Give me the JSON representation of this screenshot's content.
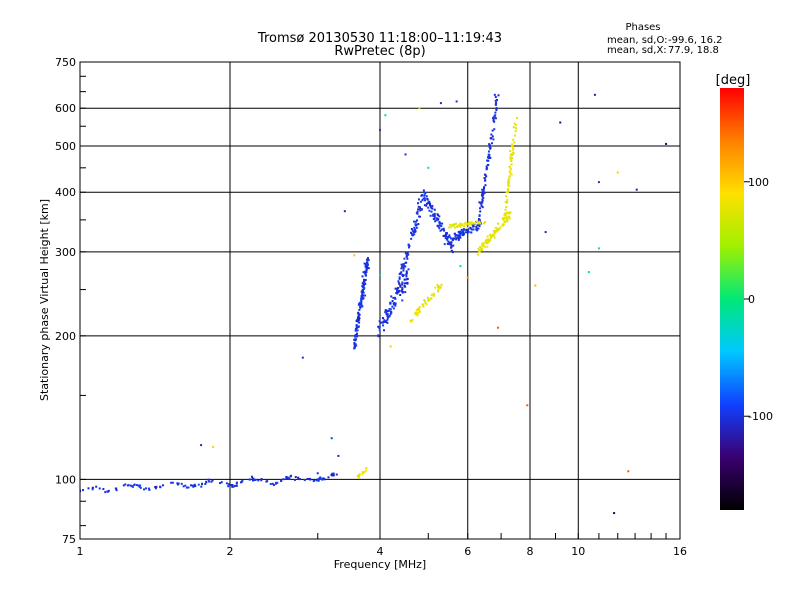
{
  "chart_data": {
    "type": "scatter",
    "title": "Tromsø 20130530 11:18:00–11:19:43",
    "subtitle": "RwPretec (8p)",
    "xlabel": "Frequency [MHz]",
    "ylabel": "Stationary phase Virtual Height [km]",
    "xscale": "log",
    "yscale": "log",
    "xlim": [
      1,
      16
    ],
    "ylim": [
      75,
      750
    ],
    "xticks": [
      1,
      2,
      4,
      6,
      8,
      10,
      16
    ],
    "yticks": [
      75,
      100,
      200,
      300,
      400,
      500,
      600,
      750
    ],
    "grid": true,
    "phase_stats": {
      "heading": "Phases",
      "o_label": "mean, sd,O:",
      "o_values": "-99.6, 16.2",
      "x_label": "mean, sd,X:",
      "x_values": "77.9, 18.8"
    },
    "colorbar": {
      "label": "[deg]",
      "range": [
        -180,
        180
      ],
      "ticks": [
        100,
        0,
        -100
      ],
      "colors": [
        "#000000",
        "#3a0070",
        "#1040ff",
        "#00c8ff",
        "#00e878",
        "#a0f000",
        "#ffe000",
        "#ff8000",
        "#ff0000"
      ]
    },
    "series": [
      {
        "mode": "O",
        "color_phase": -100,
        "segments": [
          {
            "x": [
              1.0,
              3.3
            ],
            "y": [
              95,
              101
            ],
            "n": 150,
            "spread": 0.015,
            "wiggle": 0.012
          },
          {
            "x": [
              3.55,
              3.78
            ],
            "y": [
              190,
              290
            ],
            "n": 140,
            "spread": 0.06,
            "wiggle": 0.0
          },
          {
            "x": [
              3.95,
              4.55
            ],
            "y": [
              205,
              265
            ],
            "n": 90,
            "spread": 0.07,
            "wiggle": 0.0
          },
          {
            "x": [
              4.3,
              4.9
            ],
            "y": [
              240,
              400
            ],
            "n": 90,
            "spread": 0.05,
            "wiggle": 0.0
          },
          {
            "x": [
              4.9,
              5.6
            ],
            "y": [
              395,
              305
            ],
            "n": 90,
            "spread": 0.05,
            "wiggle": 0.0
          },
          {
            "x": [
              5.6,
              6.4
            ],
            "y": [
              320,
              345
            ],
            "n": 80,
            "spread": 0.03,
            "wiggle": 0.0
          },
          {
            "x": [
              6.3,
              6.9
            ],
            "y": [
              340,
              640
            ],
            "n": 100,
            "spread": 0.05,
            "wiggle": 0.0
          }
        ]
      },
      {
        "mode": "X",
        "color_phase": 78,
        "segments": [
          {
            "x": [
              4.6,
              5.3
            ],
            "y": [
              215,
              255
            ],
            "n": 45,
            "spread": 0.03,
            "wiggle": 0.0
          },
          {
            "x": [
              5.5,
              6.5
            ],
            "y": [
              340,
              345
            ],
            "n": 45,
            "spread": 0.02,
            "wiggle": 0.0
          },
          {
            "x": [
              6.3,
              7.3
            ],
            "y": [
              300,
              360
            ],
            "n": 80,
            "spread": 0.03,
            "wiggle": 0.0
          },
          {
            "x": [
              7.1,
              7.5
            ],
            "y": [
              350,
              560
            ],
            "n": 70,
            "spread": 0.04,
            "wiggle": 0.0
          },
          {
            "x": [
              3.6,
              3.8
            ],
            "y": [
              101,
              106
            ],
            "n": 15,
            "spread": 0.015,
            "wiggle": 0.0
          }
        ]
      }
    ],
    "outliers": [
      {
        "x": 6.8,
        "y": 640,
        "phase": -100
      },
      {
        "x": 5.7,
        "y": 620,
        "phase": -100
      },
      {
        "x": 5.3,
        "y": 615,
        "phase": -110
      },
      {
        "x": 4.0,
        "y": 540,
        "phase": -100
      },
      {
        "x": 4.1,
        "y": 580,
        "phase": -20
      },
      {
        "x": 4.5,
        "y": 480,
        "phase": -100
      },
      {
        "x": 5.0,
        "y": 450,
        "phase": -20
      },
      {
        "x": 4.8,
        "y": 600,
        "phase": 60
      },
      {
        "x": 9.2,
        "y": 560,
        "phase": -130
      },
      {
        "x": 10.8,
        "y": 640,
        "phase": -110
      },
      {
        "x": 11.0,
        "y": 420,
        "phase": -100
      },
      {
        "x": 12.0,
        "y": 440,
        "phase": 100
      },
      {
        "x": 13.1,
        "y": 405,
        "phase": -120
      },
      {
        "x": 15.0,
        "y": 505,
        "phase": -140
      },
      {
        "x": 8.6,
        "y": 330,
        "phase": -110
      },
      {
        "x": 11.0,
        "y": 305,
        "phase": -20
      },
      {
        "x": 10.5,
        "y": 272,
        "phase": -20
      },
      {
        "x": 8.2,
        "y": 255,
        "phase": 110
      },
      {
        "x": 3.4,
        "y": 365,
        "phase": -110
      },
      {
        "x": 2.8,
        "y": 180,
        "phase": -100
      },
      {
        "x": 3.2,
        "y": 122,
        "phase": -90
      },
      {
        "x": 1.75,
        "y": 118,
        "phase": -110
      },
      {
        "x": 1.85,
        "y": 117,
        "phase": 100
      },
      {
        "x": 3.3,
        "y": 112,
        "phase": -110
      },
      {
        "x": 3.0,
        "y": 103,
        "phase": -100
      },
      {
        "x": 4.2,
        "y": 190,
        "phase": 100
      },
      {
        "x": 6.9,
        "y": 208,
        "phase": 150
      },
      {
        "x": 7.9,
        "y": 143,
        "phase": 150
      },
      {
        "x": 12.6,
        "y": 104,
        "phase": 150
      },
      {
        "x": 11.8,
        "y": 85,
        "phase": -150
      },
      {
        "x": 6.0,
        "y": 265,
        "phase": 130
      },
      {
        "x": 5.8,
        "y": 280,
        "phase": -20
      },
      {
        "x": 4.0,
        "y": 268,
        "phase": -20
      },
      {
        "x": 3.55,
        "y": 295,
        "phase": 100
      }
    ]
  }
}
